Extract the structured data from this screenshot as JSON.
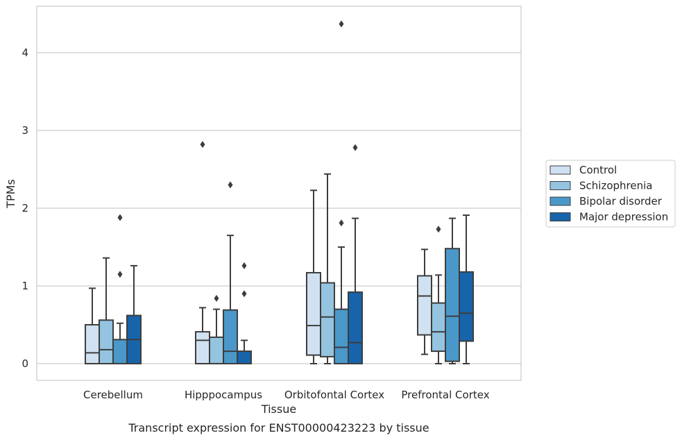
{
  "chart_data": {
    "type": "box",
    "title": "",
    "caption": "Transcript expression for ENST00000423223 by tissue",
    "xlabel": "Tissue",
    "ylabel": "TPMs",
    "ylim": [
      -0.21,
      4.6
    ],
    "yticks": [
      0,
      1,
      2,
      3,
      4
    ],
    "grid": "horizontal",
    "legend_position": "right",
    "categories": [
      "Cerebellum",
      "Hipppocampus",
      "Orbitofontal Cortex",
      "Prefrontal Cortex"
    ],
    "series": [
      {
        "name": "Control",
        "color": "#d0e1f2",
        "boxes": [
          {
            "whislo": 0,
            "q1": 0,
            "med": 0.14,
            "q3": 0.5,
            "whishi": 0.97,
            "fliers": []
          },
          {
            "whislo": 0,
            "q1": 0,
            "med": 0.3,
            "q3": 0.41,
            "whishi": 0.72,
            "fliers": [
              2.82
            ]
          },
          {
            "whislo": 0,
            "q1": 0.11,
            "med": 0.49,
            "q3": 1.17,
            "whishi": 2.23,
            "fliers": []
          },
          {
            "whislo": 0.12,
            "q1": 0.37,
            "med": 0.87,
            "q3": 1.13,
            "whishi": 1.47,
            "fliers": []
          }
        ]
      },
      {
        "name": "Schizophrenia",
        "color": "#94c4df",
        "boxes": [
          {
            "whislo": 0,
            "q1": 0,
            "med": 0.18,
            "q3": 0.56,
            "whishi": 1.36,
            "fliers": []
          },
          {
            "whislo": 0,
            "q1": 0,
            "med": 0,
            "q3": 0.34,
            "whishi": 0.7,
            "fliers": [
              0.84
            ]
          },
          {
            "whislo": 0,
            "q1": 0.09,
            "med": 0.6,
            "q3": 1.04,
            "whishi": 2.44,
            "fliers": []
          },
          {
            "whislo": 0,
            "q1": 0.16,
            "med": 0.41,
            "q3": 0.78,
            "whishi": 1.14,
            "fliers": [
              1.73
            ]
          }
        ]
      },
      {
        "name": "Bipolar disorder",
        "color": "#4a98c9",
        "boxes": [
          {
            "whislo": 0,
            "q1": 0,
            "med": 0,
            "q3": 0.31,
            "whishi": 0.52,
            "fliers": [
              1.15,
              1.88
            ]
          },
          {
            "whislo": 0,
            "q1": 0,
            "med": 0.16,
            "q3": 0.69,
            "whishi": 1.65,
            "fliers": [
              2.3
            ]
          },
          {
            "whislo": 0,
            "q1": 0,
            "med": 0.21,
            "q3": 0.7,
            "whishi": 1.5,
            "fliers": [
              1.81,
              4.37
            ]
          },
          {
            "whislo": 0,
            "q1": 0.03,
            "med": 0.61,
            "q3": 1.48,
            "whishi": 1.87,
            "fliers": []
          }
        ]
      },
      {
        "name": "Major depression",
        "color": "#1764ab",
        "boxes": [
          {
            "whislo": 0,
            "q1": 0,
            "med": 0.31,
            "q3": 0.62,
            "whishi": 1.26,
            "fliers": []
          },
          {
            "whislo": 0,
            "q1": 0,
            "med": 0,
            "q3": 0.16,
            "whishi": 0.3,
            "fliers": [
              0.9,
              1.26
            ]
          },
          {
            "whislo": 0,
            "q1": 0,
            "med": 0.27,
            "q3": 0.92,
            "whishi": 1.87,
            "fliers": [
              2.78
            ]
          },
          {
            "whislo": 0,
            "q1": 0.29,
            "med": 0.65,
            "q3": 1.18,
            "whishi": 1.91,
            "fliers": []
          }
        ]
      }
    ]
  }
}
